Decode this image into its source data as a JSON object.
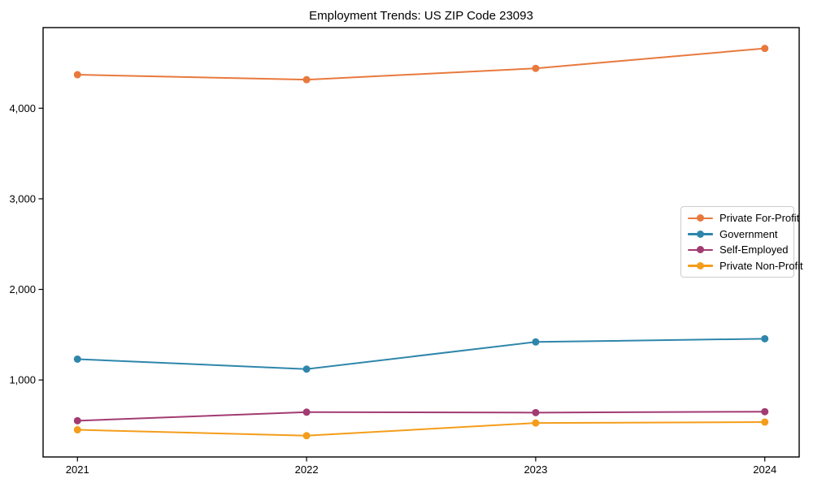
{
  "chart_data": {
    "type": "line",
    "title": "Employment Trends: US ZIP Code 23093",
    "categories": [
      "2021",
      "2022",
      "2023",
      "2024"
    ],
    "series": [
      {
        "name": "Private For-Profit",
        "color": "#E8793D",
        "values": [
          4370,
          4315,
          4440,
          4660
        ]
      },
      {
        "name": "Government",
        "color": "#2E86AB",
        "values": [
          1230,
          1120,
          1420,
          1455
        ]
      },
      {
        "name": "Self-Employed",
        "color": "#A23B72",
        "values": [
          550,
          645,
          640,
          650
        ]
      },
      {
        "name": "Private Non-Profit",
        "color": "#F49D1A",
        "values": [
          450,
          385,
          525,
          535
        ]
      }
    ],
    "xlabel": "",
    "ylabel": "",
    "yticks": [
      1000,
      2000,
      3000,
      4000
    ],
    "ytick_labels": [
      "1,000",
      "2,000",
      "3,000",
      "4,000"
    ],
    "xlim": [
      -0.15,
      3.15
    ],
    "ylim": [
      150,
      4890
    ],
    "grid": false,
    "legend_position": "right-center",
    "marker": "circle",
    "axis_color": "#000000",
    "background": "#ffffff"
  }
}
